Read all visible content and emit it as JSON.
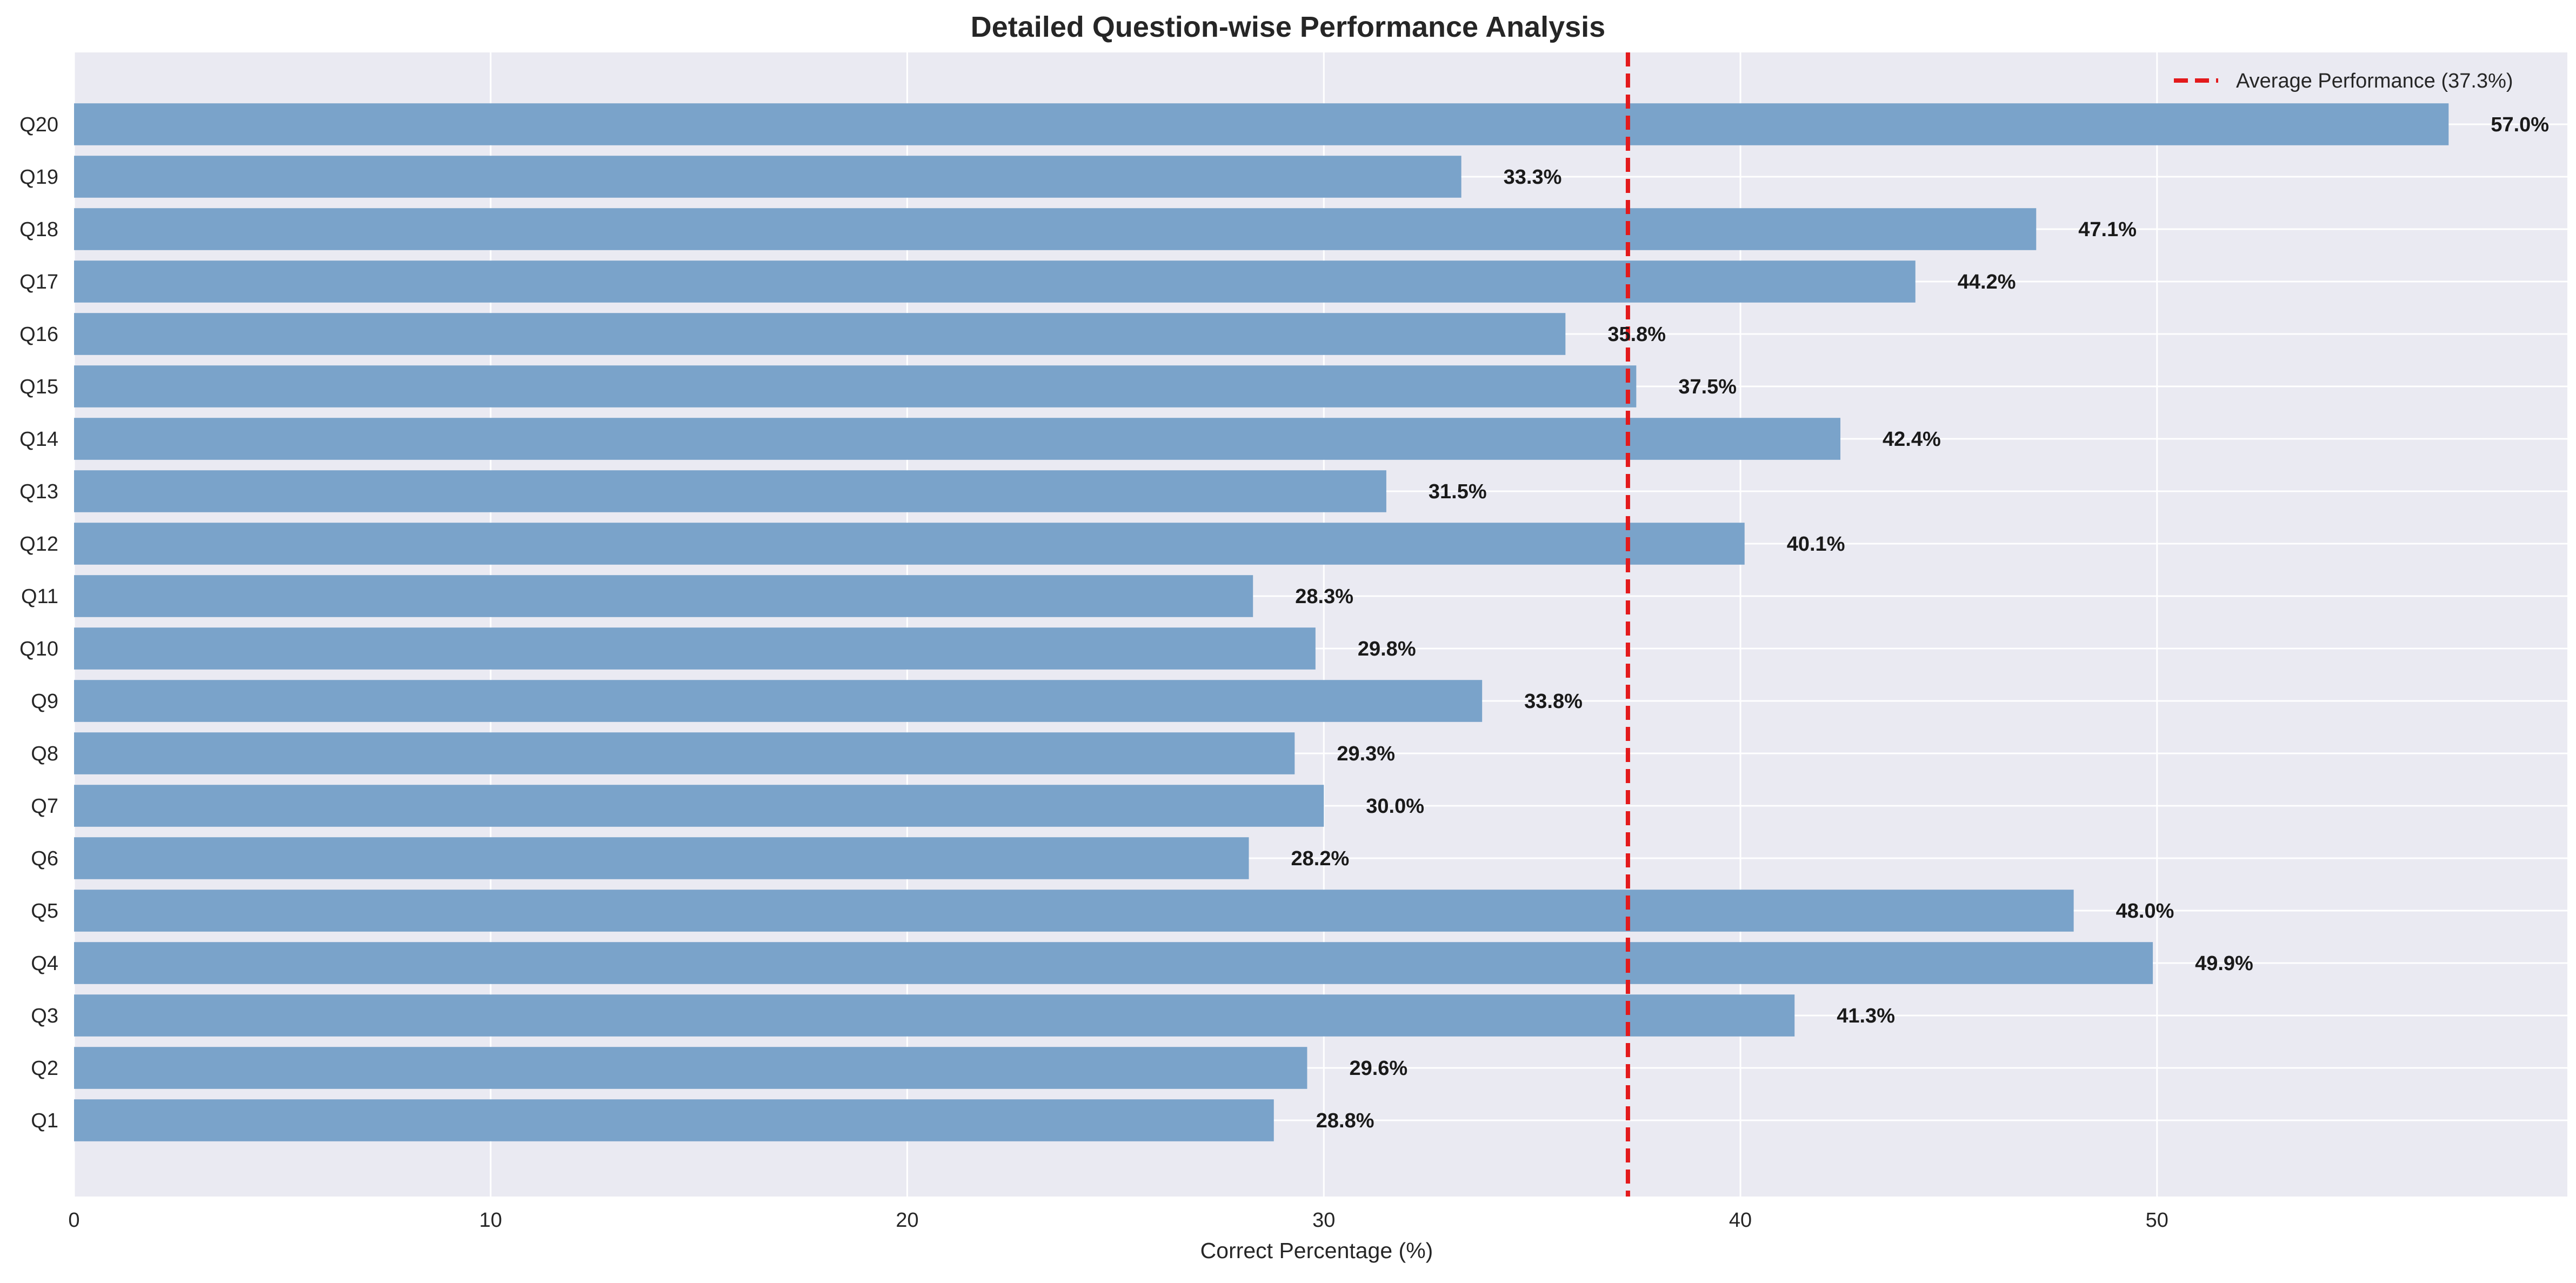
{
  "chart_data": {
    "type": "bar",
    "orientation": "horizontal",
    "title": "Detailed Question-wise Performance Analysis",
    "xlabel": "Correct Percentage (%)",
    "ylabel": "",
    "xlim": [
      0,
      59.85
    ],
    "x_ticks": [
      0,
      10,
      20,
      30,
      40,
      50
    ],
    "grid": true,
    "legend_position": "top-right",
    "categories": [
      "Q1",
      "Q2",
      "Q3",
      "Q4",
      "Q5",
      "Q6",
      "Q7",
      "Q8",
      "Q9",
      "Q10",
      "Q11",
      "Q12",
      "Q13",
      "Q14",
      "Q15",
      "Q16",
      "Q17",
      "Q18",
      "Q19",
      "Q20"
    ],
    "values": [
      28.8,
      29.6,
      41.3,
      49.9,
      48.0,
      28.2,
      30.0,
      29.3,
      33.8,
      29.8,
      28.3,
      40.1,
      31.5,
      42.4,
      37.5,
      35.8,
      44.2,
      47.1,
      33.3,
      57.0
    ],
    "value_labels": [
      "28.8%",
      "29.6%",
      "41.3%",
      "49.9%",
      "48.0%",
      "28.2%",
      "30.0%",
      "29.3%",
      "33.8%",
      "29.8%",
      "28.3%",
      "40.1%",
      "31.5%",
      "42.4%",
      "37.5%",
      "35.8%",
      "44.2%",
      "47.1%",
      "33.3%",
      "57.0%"
    ],
    "reference_line": {
      "value": 37.3,
      "label": "Average Performance (37.3%)",
      "color": "#e31a1c",
      "style": "dashed"
    },
    "colors": {
      "bar": "#7aa3ca",
      "plot_background": "#eaeaf2",
      "grid": "#ffffff",
      "text": "#262626"
    }
  }
}
